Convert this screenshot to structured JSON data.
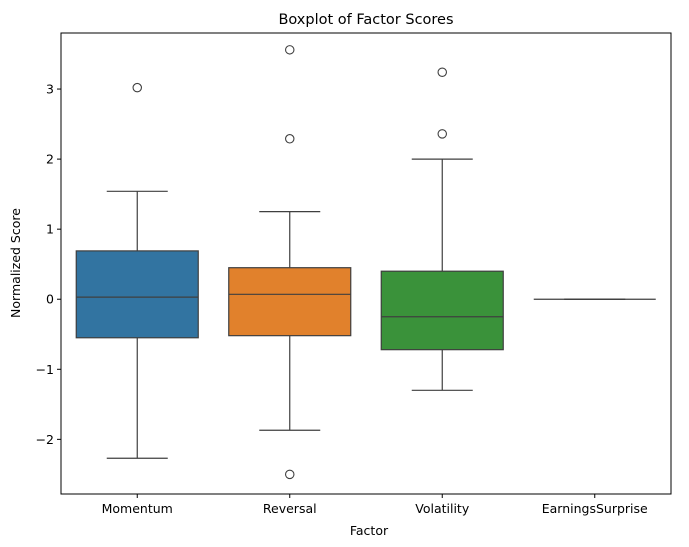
{
  "chart_data": {
    "type": "boxplot",
    "title": "Boxplot of Factor Scores",
    "xlabel": "Factor",
    "ylabel": "Normalized Score",
    "ylim": [
      -2.78,
      3.8
    ],
    "yticks": [
      -2,
      -1,
      0,
      1,
      2,
      3
    ],
    "ytick_labels": [
      "−2",
      "−1",
      "0",
      "1",
      "2",
      "3"
    ],
    "grid": false,
    "categories": [
      "Momentum",
      "Reversal",
      "Volatility",
      "EarningsSurprise"
    ],
    "boxes": [
      {
        "name": "Momentum",
        "color": "#3274a1",
        "whisker_low": -2.27,
        "q1": -0.55,
        "median": 0.03,
        "q3": 0.69,
        "whisker_high": 1.54,
        "outliers": [
          3.02
        ]
      },
      {
        "name": "Reversal",
        "color": "#e1812c",
        "whisker_low": -1.87,
        "q1": -0.52,
        "median": 0.07,
        "q3": 0.45,
        "whisker_high": 1.25,
        "outliers": [
          3.56,
          2.29,
          -2.5
        ]
      },
      {
        "name": "Volatility",
        "color": "#3a923a",
        "whisker_low": -1.3,
        "q1": -0.72,
        "median": -0.25,
        "q3": 0.4,
        "whisker_high": 2.0,
        "outliers": [
          3.24,
          2.36
        ]
      },
      {
        "name": "EarningsSurprise",
        "color": "#c03d3e",
        "whisker_low": 0.0,
        "q1": 0.0,
        "median": 0.0,
        "q3": 0.0,
        "whisker_high": 0.0,
        "outliers": []
      }
    ]
  }
}
